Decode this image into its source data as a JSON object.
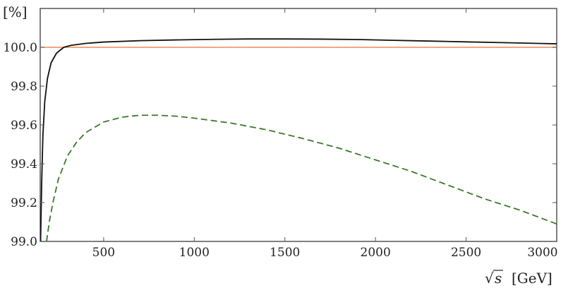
{
  "chart_data": {
    "type": "line",
    "xlabel_prefix": "√",
    "xlabel_var": "s",
    "xlabel_unit": "[GeV]",
    "ylabel": "[%]",
    "xlim": [
      150,
      3000
    ],
    "ylim": [
      99.0,
      100.2
    ],
    "x_ticks": [
      500,
      1000,
      1500,
      2000,
      2500,
      3000
    ],
    "y_ticks": [
      99.0,
      99.2,
      99.4,
      99.6,
      99.8,
      100.0
    ],
    "y_tick_labels": [
      "99.0",
      "99.2",
      "99.4",
      "99.6",
      "99.8",
      "100.0"
    ],
    "grid": false,
    "series": [
      {
        "color": "#f08a50",
        "style": "solid",
        "x": [
          150,
          3000
        ],
        "y": [
          100.0,
          100.0
        ]
      },
      {
        "color": "#111111",
        "style": "solid",
        "x": [
          152,
          158,
          165,
          175,
          190,
          210,
          240,
          280,
          320,
          400,
          500,
          700,
          900,
          1100,
          1300,
          1500,
          1700,
          1900,
          2100,
          2300,
          2500,
          2700,
          2900,
          3000
        ],
        "y": [
          99.0,
          99.3,
          99.55,
          99.72,
          99.84,
          99.92,
          99.97,
          100.0,
          100.01,
          100.02,
          100.027,
          100.034,
          100.038,
          100.041,
          100.043,
          100.043,
          100.042,
          100.04,
          100.036,
          100.032,
          100.028,
          100.024,
          100.02,
          100.018
        ]
      },
      {
        "color": "#3a7a2a",
        "style": "dashed",
        "x": [
          185,
          200,
          220,
          250,
          300,
          350,
          400,
          500,
          600,
          700,
          800,
          900,
          1000,
          1200,
          1400,
          1600,
          1800,
          2000,
          2200,
          2400,
          2600,
          2800,
          3000
        ],
        "y": [
          99.0,
          99.1,
          99.2,
          99.32,
          99.44,
          99.51,
          99.56,
          99.615,
          99.64,
          99.65,
          99.65,
          99.645,
          99.635,
          99.61,
          99.575,
          99.53,
          99.48,
          99.42,
          99.36,
          99.29,
          99.22,
          99.16,
          99.09
        ]
      }
    ]
  }
}
